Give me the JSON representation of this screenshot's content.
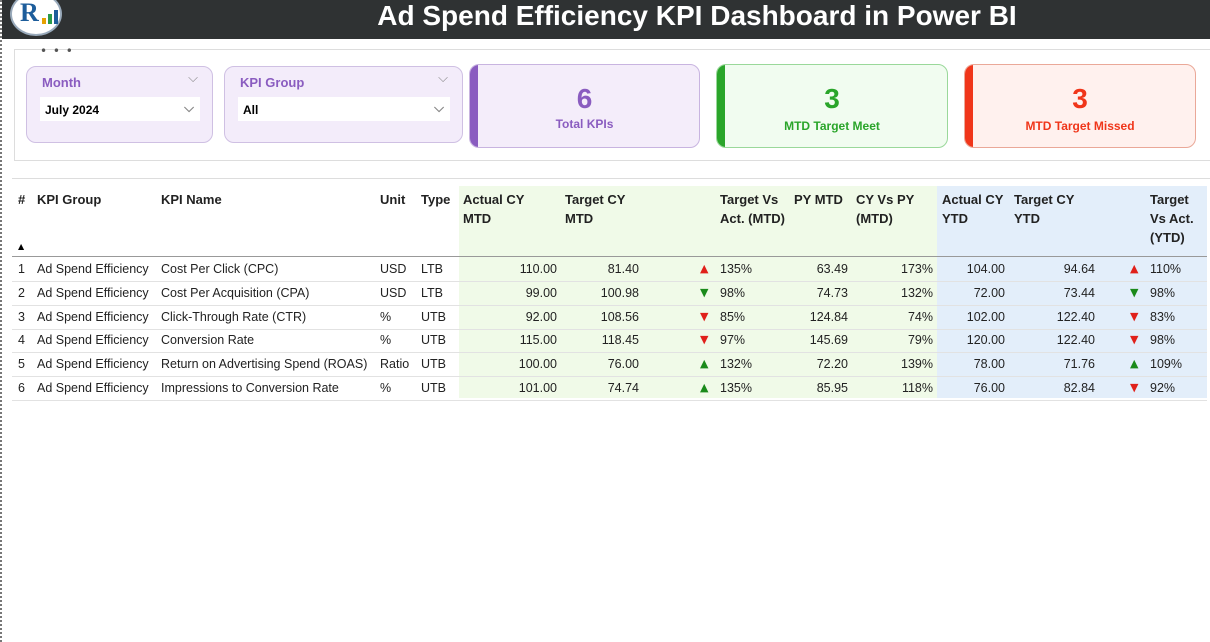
{
  "header": {
    "title": "Ad Spend Efficiency KPI Dashboard in Power BI"
  },
  "slicers": [
    {
      "label": "Month",
      "value": "July 2024"
    },
    {
      "label": "KPI Group",
      "value": "All"
    }
  ],
  "cards": [
    {
      "value": "6",
      "label": "Total KPIs",
      "color": "#8a5cc0"
    },
    {
      "value": "3",
      "label": "MTD Target Meet",
      "color": "#2aa52a"
    },
    {
      "value": "3",
      "label": "MTD Target Missed",
      "color": "#f0361a"
    }
  ],
  "table": {
    "columns": [
      "#",
      "KPI Group",
      "KPI Name",
      "Unit",
      "Type",
      "Actual CY MTD",
      "Target CY MTD",
      "Target Vs Act. (MTD)",
      "PY MTD",
      "CY Vs PY (MTD)",
      "Actual CY YTD",
      "Target CY YTD",
      "Target Vs Act. (YTD)"
    ],
    "rows": [
      {
        "n": "1",
        "group": "Ad Spend Efficiency",
        "name": "Cost Per Click (CPC)",
        "unit": "USD",
        "type": "LTB",
        "act_mtd": "110.00",
        "tgt_mtd": "81.40",
        "mtd_icon": "up-red",
        "tva_mtd": "135%",
        "py_mtd": "63.49",
        "cyvspy": "173%",
        "act_ytd": "104.00",
        "tgt_ytd": "94.64",
        "ytd_icon": "up-red",
        "tva_ytd": "110%"
      },
      {
        "n": "2",
        "group": "Ad Spend Efficiency",
        "name": "Cost Per Acquisition (CPA)",
        "unit": "USD",
        "type": "LTB",
        "act_mtd": "99.00",
        "tgt_mtd": "100.98",
        "mtd_icon": "down-green",
        "tva_mtd": "98%",
        "py_mtd": "74.73",
        "cyvspy": "132%",
        "act_ytd": "72.00",
        "tgt_ytd": "73.44",
        "ytd_icon": "down-green",
        "tva_ytd": "98%"
      },
      {
        "n": "3",
        "group": "Ad Spend Efficiency",
        "name": "Click-Through Rate (CTR)",
        "unit": "%",
        "type": "UTB",
        "act_mtd": "92.00",
        "tgt_mtd": "108.56",
        "mtd_icon": "down-red",
        "tva_mtd": "85%",
        "py_mtd": "124.84",
        "cyvspy": "74%",
        "act_ytd": "102.00",
        "tgt_ytd": "122.40",
        "ytd_icon": "down-red",
        "tva_ytd": "83%"
      },
      {
        "n": "4",
        "group": "Ad Spend Efficiency",
        "name": "Conversion Rate",
        "unit": "%",
        "type": "UTB",
        "act_mtd": "115.00",
        "tgt_mtd": "118.45",
        "mtd_icon": "down-red",
        "tva_mtd": "97%",
        "py_mtd": "145.69",
        "cyvspy": "79%",
        "act_ytd": "120.00",
        "tgt_ytd": "122.40",
        "ytd_icon": "down-red",
        "tva_ytd": "98%"
      },
      {
        "n": "5",
        "group": "Ad Spend Efficiency",
        "name": "Return on Advertising Spend (ROAS)",
        "unit": "Ratio",
        "type": "UTB",
        "act_mtd": "100.00",
        "tgt_mtd": "76.00",
        "mtd_icon": "up-green",
        "tva_mtd": "132%",
        "py_mtd": "72.20",
        "cyvspy": "139%",
        "act_ytd": "78.00",
        "tgt_ytd": "71.76",
        "ytd_icon": "up-green",
        "tva_ytd": "109%"
      },
      {
        "n": "6",
        "group": "Ad Spend Efficiency",
        "name": "Impressions to Conversion Rate",
        "unit": "%",
        "type": "UTB",
        "act_mtd": "101.00",
        "tgt_mtd": "74.74",
        "mtd_icon": "up-green",
        "tva_mtd": "135%",
        "py_mtd": "85.95",
        "cyvspy": "118%",
        "act_ytd": "76.00",
        "tgt_ytd": "82.84",
        "ytd_icon": "down-red",
        "tva_ytd": "92%"
      }
    ]
  },
  "colors": {
    "mtd_bg": "#f0fae8",
    "ytd_bg": "#e3eefa",
    "up_red": "#e0201a",
    "green": "#1a8a1a"
  }
}
